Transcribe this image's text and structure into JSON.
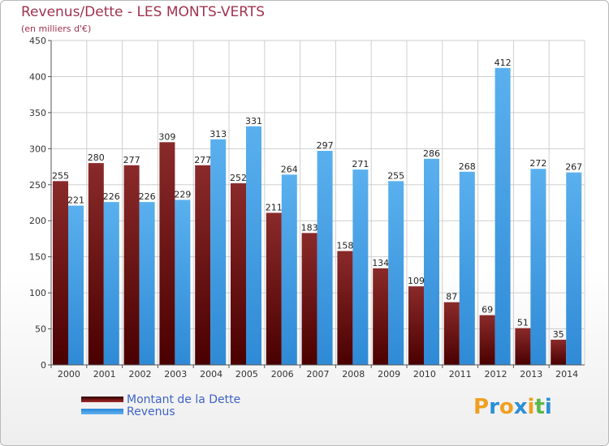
{
  "header": {
    "title": "Revenus/Dette - LES MONTS-VERTS",
    "subtitle": "(en milliers d'€)"
  },
  "colors": {
    "debt": "#7a1515",
    "revenue": "#4ea3e6",
    "title": "#a0334e",
    "legend_text": "#3f63c9"
  },
  "chart_data": {
    "type": "bar",
    "title": "Revenus/Dette - LES MONTS-VERTS",
    "subtitle": "(en milliers d'€)",
    "categories": [
      "2000",
      "2001",
      "2002",
      "2003",
      "2004",
      "2005",
      "2006",
      "2007",
      "2008",
      "2009",
      "2010",
      "2011",
      "2012",
      "2013",
      "2014"
    ],
    "series": [
      {
        "name": "Montant de la Dette",
        "values": [
          255,
          280,
          277,
          309,
          277,
          252,
          211,
          183,
          158,
          134,
          109,
          87,
          69,
          51,
          35
        ]
      },
      {
        "name": "Revenus",
        "values": [
          221,
          226,
          226,
          229,
          313,
          331,
          264,
          297,
          271,
          255,
          286,
          268,
          412,
          272,
          267
        ]
      }
    ],
    "ylim": [
      0,
      450
    ],
    "yticks": [
      "0",
      "50",
      "100",
      "150",
      "200",
      "250",
      "300",
      "350",
      "400",
      "450"
    ],
    "grid": true,
    "legend": "bottom-left"
  },
  "legend": {
    "items": [
      {
        "label": "Montant de la Dette"
      },
      {
        "label": "Revenus"
      }
    ]
  },
  "logo": {
    "letters": [
      "P",
      "r",
      "o",
      "x",
      "i",
      "t",
      "i"
    ],
    "colors": [
      "#f0a020",
      "#2a8fd8",
      "#f0a020",
      "#2a8fd8",
      "#f0a020",
      "#5ab84a",
      "#2a8fd8"
    ]
  }
}
